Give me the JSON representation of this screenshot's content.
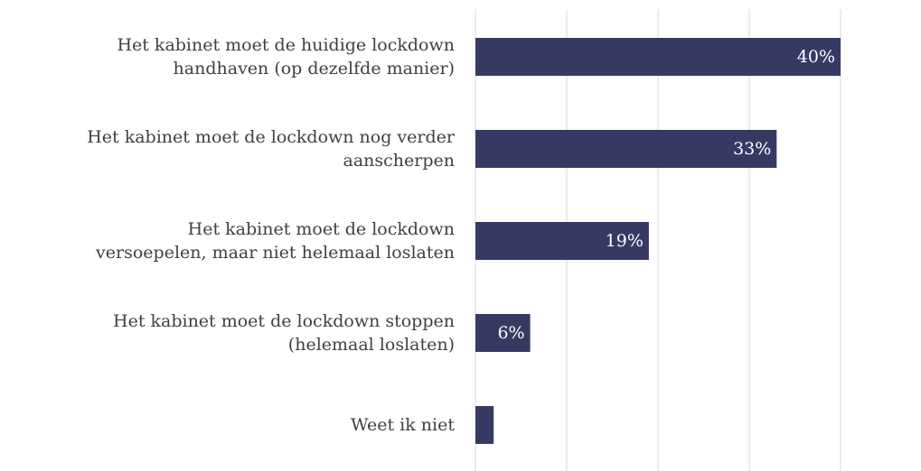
{
  "chart_data": {
    "type": "barh",
    "categories": [
      "Het kabinet moet de huidige lockdown\nhandhaven (op dezelfde manier)",
      "Het kabinet moet de lockdown nog verder\naanscherpen",
      "Het kabinet moet de lockdown\nversoepelen, maar niet helemaal loslaten",
      "Het kabinet moet de lockdown stoppen\n(helemaal loslaten)",
      "Weet ik niet"
    ],
    "values": [
      40,
      33,
      19,
      6,
      2
    ],
    "value_labels": [
      "40%",
      "33%",
      "19%",
      "6%",
      null
    ],
    "color": "#363a63",
    "xlim": [
      0,
      40
    ],
    "xticks": [
      0,
      10,
      20,
      30,
      40
    ],
    "grid": true
  }
}
